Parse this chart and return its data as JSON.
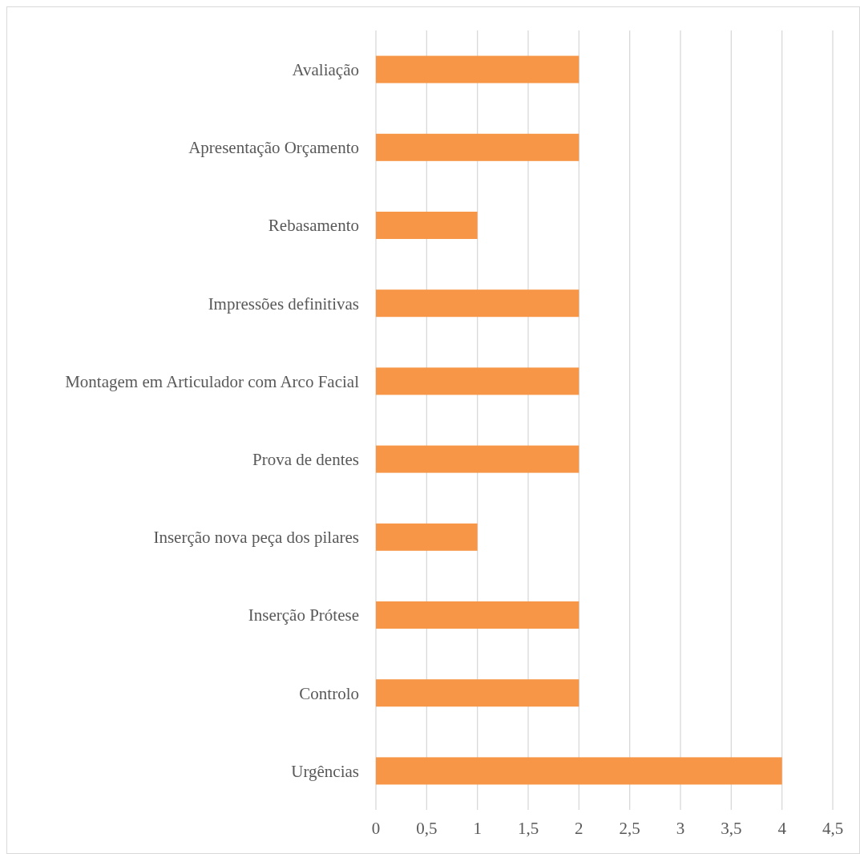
{
  "chart_data": {
    "type": "bar",
    "orientation": "horizontal",
    "categories": [
      "Avaliação",
      "Apresentação Orçamento",
      "Rebasamento",
      "Impressões definitivas",
      "Montagem em Articulador com Arco Facial",
      "Prova de dentes",
      "Inserção nova peça dos pilares",
      "Inserção Prótese",
      "Controlo",
      "Urgências"
    ],
    "values": [
      2,
      2,
      1,
      2,
      2,
      2,
      1,
      2,
      2,
      4
    ],
    "color": "#f79646",
    "xlim": [
      0,
      4.5
    ],
    "xticks": [
      0,
      {
        "value": 0.5,
        "label": "0,5"
      },
      1,
      {
        "value": 1.5,
        "label": "1,5"
      },
      2,
      {
        "value": 2.5,
        "label": "2,5"
      },
      3,
      {
        "value": 3.5,
        "label": "3,5"
      },
      4,
      {
        "value": 4.5,
        "label": "4,5"
      }
    ],
    "grid": "x"
  }
}
